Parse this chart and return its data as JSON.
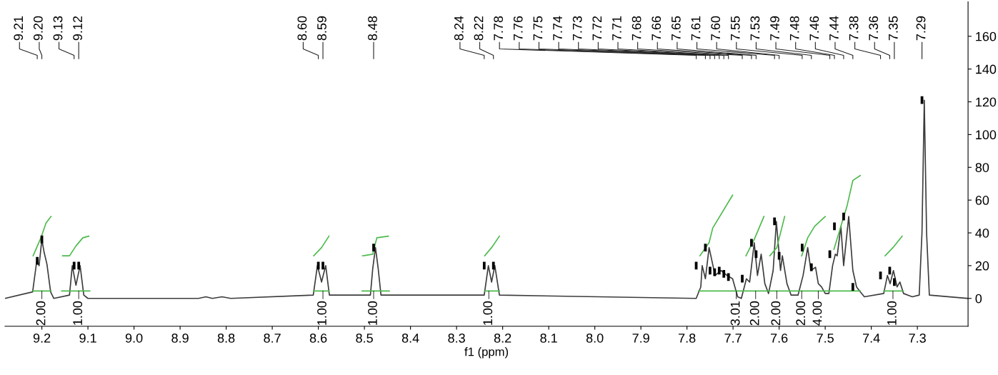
{
  "chart_data": {
    "type": "line",
    "xlabel": "f1 (ppm)",
    "xlim": [
      9.28,
      7.19
    ],
    "xticks": [
      9.2,
      9.1,
      {
        "value": 9,
        "label": "9.0"
      },
      8.9,
      8.8,
      8.7,
      8.6,
      8.5,
      8.4,
      8.3,
      8.2,
      8.1,
      {
        "value": 8,
        "label": "8.0"
      },
      7.9,
      7.8,
      7.7,
      7.6,
      7.5,
      7.4,
      7.3
    ],
    "ylim": [
      -17,
      181
    ],
    "yticks": [
      0,
      20,
      40,
      60,
      80,
      100,
      120,
      140,
      160
    ],
    "grid": false,
    "legend": false,
    "series": [
      {
        "type": "line",
        "color": "#3c3c3c",
        "x": [
          9.28,
          9.22,
          9.211,
          9.206,
          9.2,
          9.195,
          9.189,
          9.181,
          9.174,
          9.14,
          9.134,
          9.126,
          9.117,
          9.109,
          9.1,
          8.86,
          8.844,
          8.83,
          8.809,
          8.79,
          8.611,
          8.602,
          8.593,
          8.584,
          8.576,
          8.487,
          8.482,
          8.476,
          8.47,
          8.464,
          8.24,
          8.231,
          8.224,
          8.217,
          8.207,
          7.78,
          7.77,
          7.767,
          7.76,
          7.752,
          7.739,
          7.726,
          7.713,
          7.701,
          7.69,
          7.682,
          7.671,
          7.664,
          7.654,
          7.647,
          7.639,
          7.631,
          7.623,
          7.613,
          7.606,
          7.597,
          7.593,
          7.583,
          7.574,
          7.559,
          7.548,
          7.538,
          7.531,
          7.521,
          7.515,
          7.508,
          7.5,
          7.492,
          7.484,
          7.478,
          7.474,
          7.466,
          7.46,
          7.449,
          7.44,
          7.432,
          7.424,
          7.415,
          7.373,
          7.365,
          7.359,
          7.352,
          7.344,
          7.338,
          7.33,
          7.311,
          7.296,
          7.29,
          7.285,
          7.28,
          7.274,
          7.19
        ],
        "values": [
          0,
          4,
          23,
          20,
          36,
          28,
          21,
          4,
          0,
          2,
          20,
          8,
          20,
          2,
          0,
          0,
          1,
          0,
          1,
          0,
          2,
          20,
          10,
          20,
          2,
          2,
          18,
          31,
          18,
          2,
          2,
          20,
          10,
          20,
          2,
          0,
          7,
          20,
          12,
          31,
          14,
          17,
          14,
          12,
          1,
          0,
          12,
          10,
          34,
          14,
          27,
          9,
          3,
          17,
          47,
          17,
          26,
          9,
          2,
          2,
          14,
          31,
          17,
          19,
          9,
          7,
          3,
          3,
          20,
          27,
          26,
          44,
          20,
          50,
          17,
          7,
          4,
          1,
          3,
          14,
          9,
          17,
          7,
          10,
          3,
          1,
          2,
          40,
          121,
          40,
          2,
          0
        ]
      },
      {
        "type": "line",
        "color": "#4dba4d",
        "x": [
          9.219,
          9.202,
          9.191,
          9.18,
          null,
          9.155,
          9.14,
          9.126,
          9.111,
          9.098,
          null,
          8.61,
          8.593,
          8.577,
          null,
          8.504,
          8.482,
          8.473,
          8.448,
          null,
          8.239,
          8.224,
          8.207,
          null,
          7.772,
          7.752,
          7.744,
          7.701,
          null,
          7.672,
          7.654,
          7.633,
          null,
          7.62,
          7.605,
          7.588,
          null,
          7.551,
          7.538,
          7.523,
          7.5,
          null,
          7.481,
          7.466,
          7.453,
          7.44,
          7.424,
          null,
          7.37,
          7.353,
          7.333
        ],
        "values": [
          26,
          37,
          46,
          50,
          null,
          26,
          26,
          32,
          37,
          38,
          null,
          26,
          31,
          38,
          null,
          26,
          27,
          37,
          38,
          null,
          26,
          31,
          38,
          null,
          26,
          34,
          43,
          63,
          null,
          26,
          36,
          50,
          null,
          26,
          31,
          50,
          null,
          26,
          37,
          44,
          50,
          null,
          30,
          44,
          56,
          72,
          75,
          null,
          26,
          31,
          38
        ]
      },
      {
        "type": "line",
        "color": "#4dba4d",
        "x": [
          9.219,
          9.18,
          null,
          9.157,
          9.096,
          null,
          8.61,
          8.577,
          null,
          8.505,
          8.446,
          null,
          8.239,
          8.207,
          null,
          7.775,
          7.678,
          null,
          7.678,
          7.625,
          null,
          7.625,
          7.579,
          null,
          7.579,
          7.497,
          null,
          7.497,
          7.424,
          null,
          7.373,
          7.331
        ],
        "values": [
          4.5,
          4.5,
          null,
          4.5,
          4.5,
          null,
          4.5,
          4.5,
          null,
          4.5,
          4.5,
          null,
          4.5,
          4.5,
          null,
          4.5,
          4.5,
          null,
          4.5,
          4.5,
          null,
          4.5,
          4.5,
          null,
          4.5,
          4.5,
          null,
          4.5,
          4.5,
          null,
          4.5,
          4.5
        ]
      },
      {
        "type": "scatter",
        "color": "#000000",
        "x": [
          9.21,
          9.2,
          9.13,
          9.12,
          8.6,
          8.59,
          8.48,
          8.24,
          8.22,
          7.78,
          7.76,
          7.75,
          7.74,
          7.73,
          7.72,
          7.71,
          7.68,
          7.66,
          7.65,
          7.61,
          7.6,
          7.55,
          7.53,
          7.49,
          7.48,
          7.46,
          7.44,
          7.38,
          7.36,
          7.35,
          7.29
        ],
        "values": [
          23,
          36,
          20,
          20,
          20,
          20,
          31,
          20,
          20,
          20,
          31,
          17,
          16,
          17,
          15,
          13,
          12,
          34,
          27,
          47,
          26,
          31,
          19,
          27,
          44,
          50,
          7,
          14,
          17,
          10,
          121
        ]
      }
    ],
    "annotations": [
      "9.21",
      "9.20",
      "9.13",
      "9.12",
      "8.60",
      "8.59",
      "8.48",
      "8.24",
      "8.22",
      "7.78",
      "7.76",
      "7.75",
      "7.74",
      "7.73",
      "7.72",
      "7.71",
      "7.68",
      "7.66",
      "7.65",
      "7.61",
      "7.60",
      "7.55",
      "7.53",
      "7.49",
      "7.48",
      "7.46",
      "7.44",
      "7.38",
      "7.36",
      "7.35",
      "7.29",
      {
        "text": "2.00",
        "x": 9.2,
        "y": 4.5
      },
      {
        "text": "1.00",
        "x": 9.12,
        "y": 4.5
      },
      {
        "text": "1.00",
        "x": 8.59,
        "y": 4.5
      },
      {
        "text": "1.00",
        "x": 8.48,
        "y": 4.5
      },
      {
        "text": "1.00",
        "x": 8.23,
        "y": 4.5
      },
      {
        "text": "3.01",
        "x": 7.693,
        "y": 4.5
      },
      {
        "text": "2.00",
        "x": 7.651,
        "y": 4.5
      },
      {
        "text": "2.00",
        "x": 7.605,
        "y": 4.5
      },
      {
        "text": "2.00",
        "x": 7.551,
        "y": 4.5
      },
      {
        "text": "4.00",
        "x": 7.515,
        "y": 4.5
      },
      {
        "text": "1.00",
        "x": 7.353,
        "y": 4.5
      }
    ]
  }
}
